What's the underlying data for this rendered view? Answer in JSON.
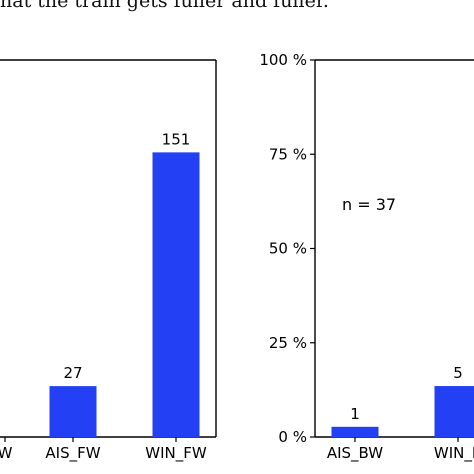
{
  "caption": "hat the train gets fuller and fuller.",
  "chart_data": [
    {
      "type": "bar",
      "categories": [
        "W",
        "AIS_FW",
        "WIN_FW"
      ],
      "values": [
        null,
        27,
        151
      ],
      "data_labels": [
        "",
        "27",
        "151"
      ],
      "ylim": [
        0,
        200
      ],
      "color": "#2440f5",
      "grid": false
    },
    {
      "type": "bar",
      "categories": [
        "AIS_BW",
        "WIN_B"
      ],
      "values": [
        1,
        5
      ],
      "data_labels": [
        "1",
        "5"
      ],
      "yticks": [
        "0 %",
        "25 %",
        "50 %",
        "75 %",
        "100 %"
      ],
      "ylim": [
        0,
        37
      ],
      "annotation": "n = 37",
      "color": "#2440f5",
      "grid": false
    }
  ]
}
